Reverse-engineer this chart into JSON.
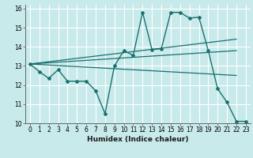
{
  "title": "",
  "xlabel": "Humidex (Indice chaleur)",
  "bg_color": "#c8eaea",
  "grid_color": "#ffffff",
  "line_color": "#1a7070",
  "xlim": [
    -0.5,
    23.5
  ],
  "ylim": [
    10,
    16.2
  ],
  "xticks": [
    0,
    1,
    2,
    3,
    4,
    5,
    6,
    7,
    8,
    9,
    10,
    11,
    12,
    13,
    14,
    15,
    16,
    17,
    18,
    19,
    20,
    21,
    22,
    23
  ],
  "yticks": [
    10,
    11,
    12,
    13,
    14,
    15,
    16
  ],
  "main_line_x": [
    0,
    1,
    2,
    3,
    4,
    5,
    6,
    7,
    8,
    9,
    10,
    11,
    12,
    13,
    14,
    15,
    16,
    17,
    18,
    19,
    20,
    21,
    22,
    23
  ],
  "main_line_y": [
    13.1,
    12.7,
    12.35,
    12.8,
    12.2,
    12.2,
    12.2,
    11.7,
    10.5,
    13.0,
    13.8,
    13.55,
    15.8,
    13.85,
    13.9,
    15.8,
    15.8,
    15.5,
    15.55,
    13.8,
    11.8,
    11.1,
    10.1,
    10.1
  ],
  "trend_lines": [
    {
      "x": [
        0,
        22
      ],
      "y": [
        13.1,
        14.4
      ]
    },
    {
      "x": [
        0,
        22
      ],
      "y": [
        13.1,
        13.8
      ]
    },
    {
      "x": [
        0,
        22
      ],
      "y": [
        13.1,
        12.5
      ]
    }
  ]
}
